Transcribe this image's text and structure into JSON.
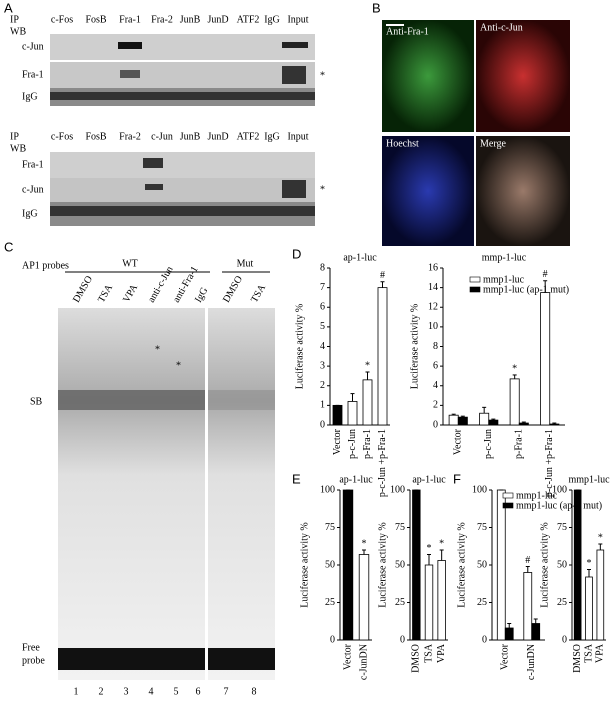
{
  "panel_a": {
    "label": "A",
    "blots": [
      {
        "ip": "IP",
        "wb": "WB",
        "lanes": [
          "c-Fos",
          "FosB",
          "Fra-1",
          "Fra-2",
          "JunB",
          "JunD",
          "ATF2",
          "IgG",
          "Input"
        ],
        "rows": [
          "c-Jun",
          "Fra-1",
          "IgG"
        ],
        "marker": "*"
      },
      {
        "ip": "IP",
        "wb": "WB",
        "lanes": [
          "c-Fos",
          "FosB",
          "Fra-2",
          "c-Jun",
          "JunB",
          "JunD",
          "ATF2",
          "IgG",
          "Input"
        ],
        "rows": [
          "Fra-1",
          "c-Jun",
          "IgG"
        ],
        "marker": "*"
      }
    ]
  },
  "panel_b": {
    "label": "B",
    "images": [
      "Anti-Fra-1",
      "Anti-c-Jun",
      "Hoechst",
      "Merge"
    ]
  },
  "panel_c": {
    "label": "C",
    "probes": "AP1 probes",
    "groups": [
      "WT",
      "Mut"
    ],
    "lanes": [
      "DMSO",
      "TSA",
      "VPA",
      "anti-c-Jun",
      "anti-Fra-1",
      "IgG",
      "DMSO",
      "TSA"
    ],
    "lane_numbers": [
      "1",
      "2",
      "3",
      "4",
      "5",
      "6",
      "7",
      "8"
    ],
    "shift_band": "SB",
    "free_probe": [
      "Free",
      "probe"
    ],
    "markers": [
      "*",
      "*"
    ]
  },
  "panel_labels": {
    "d": "D",
    "e": "E",
    "f": "F"
  },
  "chart_data": [
    {
      "type": "bar",
      "title": "ap-1-luc",
      "y_label": "Luciferase activity %",
      "categories": [
        "Vector",
        "p-c-Jun",
        "p-Fra-1",
        "p-c-Jun +p-Fra-1"
      ],
      "values": [
        1,
        1.2,
        2.3,
        7.0
      ],
      "errors": [
        0,
        0.4,
        0.4,
        0.3
      ],
      "colors": [
        "#000000",
        "#ffffff",
        "#ffffff",
        "#ffffff"
      ],
      "ylim": [
        0,
        8
      ],
      "yticks": [
        0,
        1,
        2,
        3,
        4,
        5,
        6,
        7,
        8
      ],
      "annotations": [
        {
          "category": "p-Fra-1",
          "text": "*"
        },
        {
          "category": "p-c-Jun +p-Fra-1",
          "text": "#"
        }
      ]
    },
    {
      "type": "bar",
      "title": "mmp-1-luc",
      "y_label": "Luciferase activity %",
      "categories": [
        "Vector",
        "p-c-Jun",
        "p-Fra-1",
        "p-c-Jun +p-Fra-1"
      ],
      "series": [
        {
          "name": "mmp1-luc",
          "color": "#ffffff",
          "values": [
            1.0,
            1.2,
            4.7,
            13.5
          ],
          "errors": [
            0.1,
            0.6,
            0.4,
            1.2
          ]
        },
        {
          "name": "mmp1-luc (ap-1 mut)",
          "color": "#000000",
          "values": [
            0.8,
            0.5,
            0.2,
            0.1
          ],
          "errors": [
            0.1,
            0.1,
            0.1,
            0.1
          ]
        }
      ],
      "ylim": [
        0,
        16
      ],
      "yticks": [
        0,
        2,
        4,
        6,
        8,
        10,
        12,
        14,
        16
      ],
      "annotations": [
        {
          "category": "p-Fra-1",
          "text": "*"
        },
        {
          "category": "p-c-Jun +p-Fra-1",
          "text": "#"
        }
      ]
    },
    {
      "type": "bar",
      "title": "ap-1-luc",
      "y_label": "Luciferase activity %",
      "categories": [
        "Vector",
        "c-JunDN"
      ],
      "values": [
        100,
        57
      ],
      "errors": [
        0,
        3
      ],
      "colors": [
        "#000000",
        "#ffffff"
      ],
      "ylim": [
        0,
        100
      ],
      "yticks": [
        0,
        25,
        50,
        75,
        100
      ],
      "annotations": [
        {
          "category": "c-JunDN",
          "text": "*"
        }
      ]
    },
    {
      "type": "bar",
      "title": "ap-1-luc",
      "y_label": "Luciferase activity %",
      "categories": [
        "DMSO",
        "TSA",
        "VPA"
      ],
      "values": [
        100,
        50,
        53
      ],
      "errors": [
        0,
        7,
        7
      ],
      "colors": [
        "#000000",
        "#ffffff",
        "#ffffff"
      ],
      "ylim": [
        0,
        100
      ],
      "yticks": [
        0,
        25,
        50,
        75,
        100
      ],
      "annotations": [
        {
          "category": "TSA",
          "text": "*"
        },
        {
          "category": "VPA",
          "text": "*"
        }
      ]
    },
    {
      "type": "bar",
      "y_label": "Luciferase activity %",
      "categories": [
        "Vector",
        "c-JunDN"
      ],
      "series": [
        {
          "name": "mmp1-luc",
          "color": "#ffffff",
          "values": [
            100,
            45
          ],
          "errors": [
            0,
            4
          ]
        },
        {
          "name": "mmp1-luc (ap-1 mut)",
          "color": "#000000",
          "values": [
            8,
            11
          ],
          "errors": [
            3,
            3
          ]
        }
      ],
      "ylim": [
        0,
        100
      ],
      "yticks": [
        0,
        25,
        50,
        75,
        100
      ],
      "annotations": [
        {
          "category": "c-JunDN",
          "text": "#"
        }
      ]
    },
    {
      "type": "bar",
      "title": "mmp1-luc",
      "y_label": "Luciferase activity %",
      "categories": [
        "DMSO",
        "TSA",
        "VPA"
      ],
      "values": [
        100,
        42,
        60
      ],
      "errors": [
        0,
        5,
        4
      ],
      "colors": [
        "#000000",
        "#ffffff",
        "#ffffff"
      ],
      "ylim": [
        0,
        100
      ],
      "yticks": [
        0,
        25,
        50,
        75,
        100
      ],
      "annotations": [
        {
          "category": "TSA",
          "text": "*"
        },
        {
          "category": "VPA",
          "text": "*"
        }
      ]
    }
  ]
}
